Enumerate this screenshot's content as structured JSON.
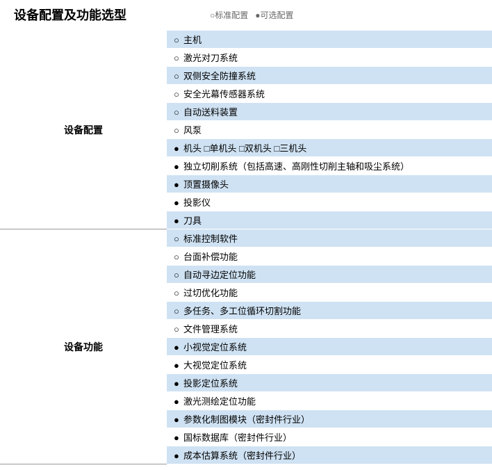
{
  "title": "设备配置及功能选型",
  "legend": {
    "standard_symbol": "○",
    "standard_label": "标准配置",
    "optional_symbol": "●",
    "optional_label": "可选配置"
  },
  "colors": {
    "row_alt_bg": "#cfe2f3",
    "row_bg": "#ffffff",
    "border": "#999999",
    "text": "#000000",
    "legend_text": "#666666"
  },
  "sections": [
    {
      "label": "设备配置",
      "items": [
        {
          "marker": "○",
          "text": "主机"
        },
        {
          "marker": "○",
          "text": "激光对刀系统"
        },
        {
          "marker": "○",
          "text": "双侧安全防撞系统"
        },
        {
          "marker": "○",
          "text": "安全光幕传感器系统"
        },
        {
          "marker": "○",
          "text": "自动送料装置"
        },
        {
          "marker": "○",
          "text": "风泵"
        },
        {
          "marker": "●",
          "text": "机头  □单机头 □双机头 □三机头"
        },
        {
          "marker": "●",
          "text": "独立切削系统（包括高速、高刚性切削主轴和吸尘系统）"
        },
        {
          "marker": "●",
          "text": "顶置摄像头"
        },
        {
          "marker": "●",
          "text": "投影仪"
        },
        {
          "marker": "●",
          "text": "刀具"
        }
      ]
    },
    {
      "label": "设备功能",
      "items": [
        {
          "marker": "○",
          "text": "标准控制软件"
        },
        {
          "marker": "○",
          "text": "台面补偿功能"
        },
        {
          "marker": "○",
          "text": "自动寻边定位功能"
        },
        {
          "marker": "○",
          "text": "过切优化功能"
        },
        {
          "marker": "○",
          "text": "多任务、多工位循环切割功能"
        },
        {
          "marker": "○",
          "text": "文件管理系统"
        },
        {
          "marker": "●",
          "text": "小视觉定位系统"
        },
        {
          "marker": "●",
          "text": "大视觉定位系统"
        },
        {
          "marker": "●",
          "text": "投影定位系统"
        },
        {
          "marker": "●",
          "text": "激光测绘定位功能"
        },
        {
          "marker": "●",
          "text": "参数化制图模块（密封件行业）"
        },
        {
          "marker": "●",
          "text": "国标数据库（密封件行业）"
        },
        {
          "marker": "●",
          "text": "成本估算系统（密封件行业）"
        }
      ]
    }
  ]
}
